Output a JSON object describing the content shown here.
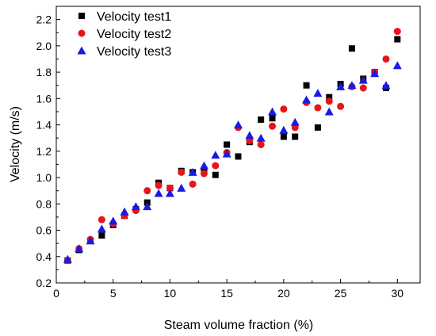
{
  "chart_data": {
    "type": "scatter",
    "xlabel": "Steam volume fraction (%)",
    "ylabel": "Velocity (m/s)",
    "xlim": [
      0,
      32
    ],
    "ylim": [
      0.2,
      2.3
    ],
    "x_ticks": [
      0,
      5,
      10,
      15,
      20,
      25,
      30
    ],
    "x_tick_labels": [
      "0",
      "5",
      "10",
      "15",
      "20",
      "25",
      "30"
    ],
    "y_ticks": [
      0.2,
      0.4,
      0.6,
      0.8,
      1.0,
      1.2,
      1.4,
      1.6,
      1.8,
      2.0,
      2.2
    ],
    "y_tick_labels": [
      "0.2",
      "0.4",
      "0.6",
      "0.8",
      "1.0",
      "1.2",
      "1.4",
      "1.6",
      "1.8",
      "2.0",
      "2.2"
    ],
    "grid": false,
    "legend_position": "top-left",
    "series": [
      {
        "name": "Velocity test1",
        "marker": "square",
        "color": "#000000",
        "x": [
          1,
          2,
          3,
          4,
          5,
          6,
          7,
          8,
          9,
          10,
          11,
          12,
          13,
          14,
          15,
          16,
          17,
          18,
          19,
          20,
          21,
          22,
          23,
          24,
          25,
          26,
          27,
          28,
          29,
          30
        ],
        "y": [
          0.37,
          0.45,
          0.52,
          0.56,
          0.64,
          0.71,
          0.76,
          0.81,
          0.96,
          0.92,
          1.05,
          1.04,
          1.06,
          1.02,
          1.25,
          1.16,
          1.27,
          1.44,
          1.45,
          1.31,
          1.31,
          1.7,
          1.38,
          1.61,
          1.71,
          1.98,
          1.75,
          1.8,
          1.68,
          2.05
        ]
      },
      {
        "name": "Velocity test2",
        "marker": "circle",
        "color": "#e8141b",
        "x": [
          1,
          2,
          3,
          4,
          5,
          6,
          7,
          8,
          9,
          10,
          11,
          12,
          13,
          14,
          15,
          16,
          17,
          18,
          19,
          20,
          21,
          22,
          23,
          24,
          25,
          26,
          27,
          28,
          29,
          30
        ],
        "y": [
          0.37,
          0.46,
          0.53,
          0.68,
          0.65,
          0.71,
          0.75,
          0.9,
          0.94,
          0.92,
          1.04,
          0.95,
          1.03,
          1.09,
          1.19,
          1.38,
          1.28,
          1.25,
          1.39,
          1.52,
          1.38,
          1.57,
          1.53,
          1.58,
          1.54,
          1.69,
          1.68,
          1.8,
          1.9,
          2.11
        ]
      },
      {
        "name": "Velocity test3",
        "marker": "triangle",
        "color": "#1a1ae6",
        "x": [
          1,
          2,
          3,
          4,
          5,
          6,
          7,
          8,
          9,
          10,
          11,
          12,
          13,
          14,
          15,
          16,
          17,
          18,
          19,
          20,
          21,
          22,
          23,
          24,
          25,
          26,
          27,
          28,
          29,
          30
        ],
        "y": [
          0.38,
          0.46,
          0.52,
          0.61,
          0.67,
          0.74,
          0.78,
          0.78,
          0.88,
          0.88,
          0.92,
          1.04,
          1.09,
          1.17,
          1.18,
          1.4,
          1.32,
          1.3,
          1.5,
          1.36,
          1.42,
          1.59,
          1.64,
          1.5,
          1.69,
          1.7,
          1.74,
          1.79,
          1.7,
          1.85
        ]
      }
    ]
  }
}
